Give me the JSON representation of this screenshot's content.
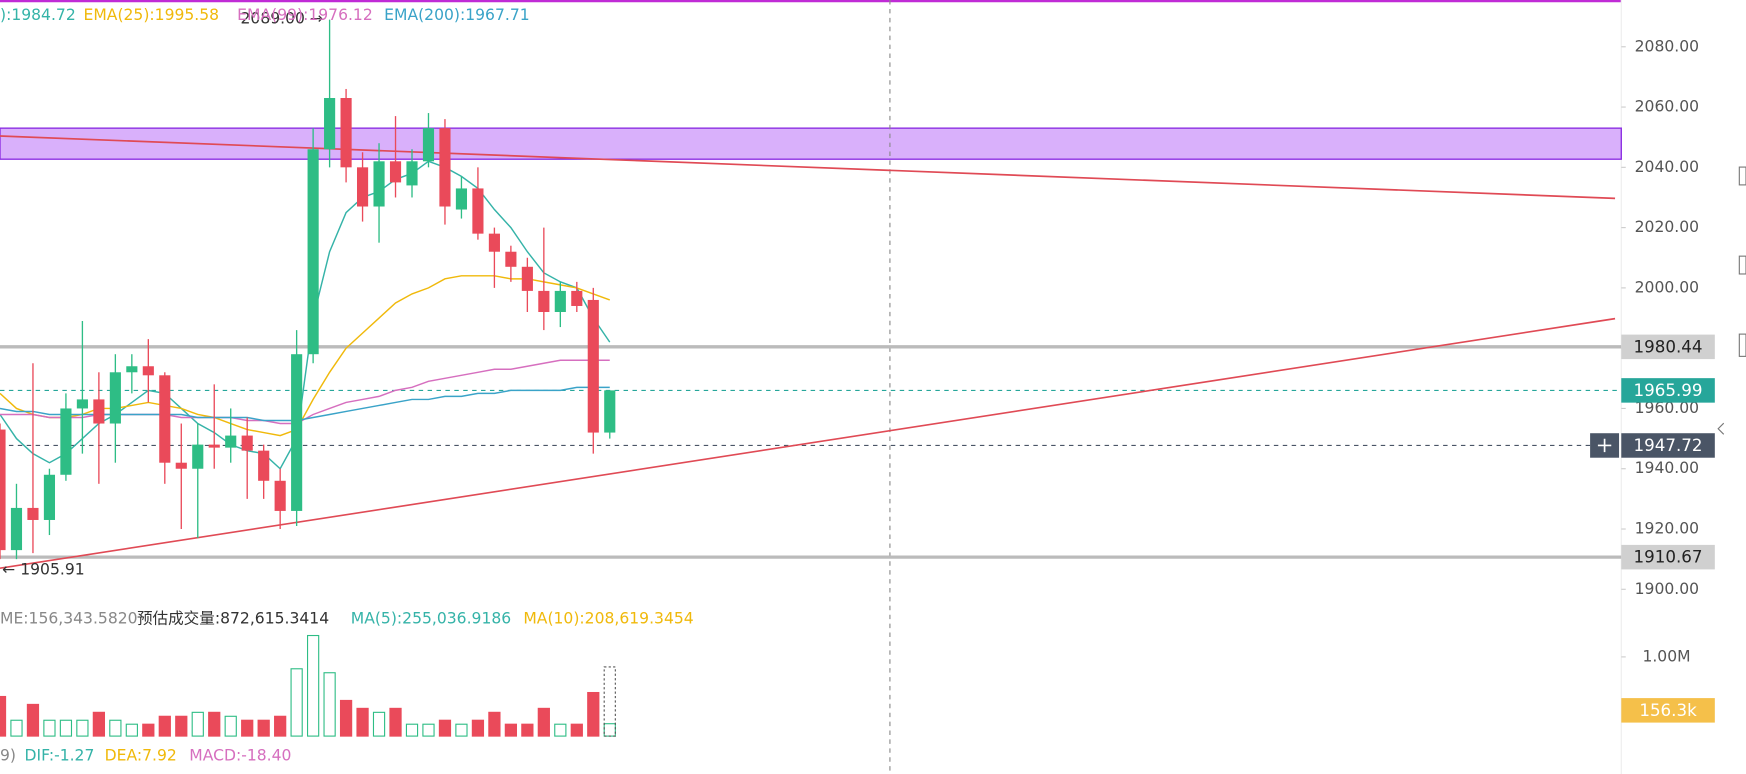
{
  "chart_data": {
    "type": "candlestick",
    "up_color": "#2ebd85",
    "down_color": "#ea4a5a",
    "open": [
      1953,
      1913,
      1927,
      1923,
      1938,
      1960,
      1963,
      1955,
      1972,
      1974,
      1971,
      1942,
      1940,
      1948,
      1947,
      1951,
      1946,
      1936,
      1926,
      1978,
      2046,
      2063,
      2040,
      2027,
      2042,
      2034,
      2042,
      2053,
      2026,
      2033,
      2018,
      2012,
      2007,
      1999,
      1992,
      1999,
      1996,
      1952
    ],
    "high": [
      1955,
      1935,
      1975,
      1940,
      1965,
      1989,
      1972,
      1978,
      1978,
      1983,
      1972,
      1955,
      1955,
      1968,
      1960,
      1957,
      1948,
      1940,
      1986,
      2053,
      2089,
      2066,
      2045,
      2048,
      2057,
      2046,
      2058,
      2056,
      2037,
      2040,
      2020,
      2014,
      2010,
      2020,
      2002,
      2002,
      2000,
      1966
    ],
    "low": [
      1910,
      1910,
      1912,
      1918,
      1936,
      1945,
      1935,
      1942,
      1965,
      1962,
      1935,
      1920,
      1917,
      1940,
      1942,
      1930,
      1930,
      1920,
      1921,
      1975,
      2040,
      2035,
      2022,
      2015,
      2030,
      2030,
      2040,
      2021,
      2023,
      2016,
      2000,
      2002,
      1992,
      1986,
      1987,
      1992,
      1945,
      1950
    ],
    "close": [
      1913,
      1927,
      1923,
      1938,
      1960,
      1963,
      1955,
      1972,
      1974,
      1971,
      1942,
      1940,
      1948,
      1947,
      1951,
      1946,
      1936,
      1926,
      1978,
      2046,
      2063,
      2040,
      2027,
      2042,
      2035,
      2042,
      2053,
      2027,
      2033,
      2018,
      2012,
      2007,
      1999,
      1992,
      1999,
      1994,
      1952,
      1966
    ],
    "ylim": [
      1896,
      2095.5
    ],
    "yticks": [
      {
        "value": 1900,
        "label": "1900.00"
      },
      {
        "value": 1920,
        "label": "1920.00"
      },
      {
        "value": 1940,
        "label": "1940.00"
      },
      {
        "value": 1960,
        "label": "1960.00"
      },
      {
        "value": 1980,
        "label": "1980.00"
      },
      {
        "value": 2000,
        "label": "2000.00"
      },
      {
        "value": 2020,
        "label": "2020.00"
      },
      {
        "value": 2040,
        "label": "2040.00"
      },
      {
        "value": 2060,
        "label": "2060.00"
      },
      {
        "value": 2080,
        "label": "2080.00"
      }
    ],
    "series": [
      {
        "name": "):1984.72",
        "color": "#35b3a8",
        "values": [
          1958,
          1950,
          1945,
          1942,
          1945,
          1950,
          1955,
          1958,
          1962,
          1966,
          1965,
          1960,
          1955,
          1952,
          1948,
          1946,
          1945,
          1940,
          1950,
          1990,
          2012,
          2025,
          2030,
          2032,
          2036,
          2038,
          2042,
          2040,
          2037,
          2033,
          2026,
          2020,
          2012,
          2005,
          2002,
          2000,
          1990,
          1982
        ]
      },
      {
        "name": "EMA(25):1995.58",
        "color": "#f0b90b",
        "values": [
          1965,
          1960,
          1958,
          1957,
          1957,
          1958,
          1960,
          1960,
          1961,
          1962,
          1961,
          1960,
          1958,
          1957,
          1955,
          1953,
          1952,
          1951,
          1953,
          1963,
          1972,
          1980,
          1985,
          1990,
          1995,
          1998,
          2000,
          2003,
          2004,
          2004,
          2004,
          2003,
          2003,
          2002,
          2001,
          2000,
          1998,
          1996
        ]
      },
      {
        "name": "EMA(99):1976.12",
        "color": "#d66fbf",
        "values": [
          1958,
          1958,
          1958,
          1957,
          1957,
          1957,
          1958,
          1958,
          1958,
          1958,
          1958,
          1957,
          1957,
          1957,
          1957,
          1956,
          1956,
          1955,
          1955,
          1958,
          1960,
          1962,
          1963,
          1964,
          1966,
          1967,
          1969,
          1970,
          1971,
          1972,
          1973,
          1973,
          1974,
          1975,
          1976,
          1976,
          1976,
          1976
        ]
      },
      {
        "name": "EMA(200):1967.71",
        "color": "#3aa3c8",
        "values": [
          1960,
          1959,
          1959,
          1958,
          1958,
          1958,
          1958,
          1958,
          1958,
          1958,
          1958,
          1958,
          1957,
          1957,
          1957,
          1957,
          1956,
          1956,
          1956,
          1957,
          1958,
          1959,
          1960,
          1961,
          1962,
          1963,
          1963,
          1964,
          1964,
          1965,
          1965,
          1966,
          1966,
          1966,
          1966,
          1967,
          1967,
          1967
        ]
      }
    ],
    "high_label": "2089.00 →",
    "low_label": "← 1905.91",
    "price_lines": [
      {
        "value": 1980.44,
        "color": "#bbbbbb",
        "style": "solid"
      },
      {
        "value": 1965.99,
        "color": "#26a69a",
        "style": "dashed"
      },
      {
        "value": 1947.72,
        "color": "#4a5566",
        "style": "crosshair"
      },
      {
        "value": 1910.67,
        "color": "#bbbbbb",
        "style": "solid"
      }
    ],
    "zone": {
      "range": [
        2042.7,
        2053
      ],
      "color": "#d9b0fb"
    },
    "trendlines": [
      {
        "x": [
          0,
          98
        ],
        "y": [
          2050.4,
          2029.7
        ],
        "color": "#e04a55"
      },
      {
        "x": [
          0,
          98
        ],
        "y": [
          1907,
          1989.8
        ],
        "color": "#e04a55"
      }
    ],
    "crosshair_x": 54,
    "volume": {
      "texts": [
        {
          "text": "ME:156,343.5820",
          "color": "#888888"
        },
        {
          "text": "预估成交量:872,615.3414",
          "color": "#333333"
        },
        {
          "text": "MA(5):255,036.9186",
          "color": "#35b3a8"
        },
        {
          "text": "MA(10):208,619.3454",
          "color": "#f0b90b"
        }
      ],
      "values": [
        0.5,
        0.2,
        0.4,
        0.2,
        0.2,
        0.2,
        0.3,
        0.2,
        0.15,
        0.15,
        0.25,
        0.25,
        0.3,
        0.3,
        0.25,
        0.2,
        0.2,
        0.25,
        0.85,
        1.27,
        0.8,
        0.45,
        0.35,
        0.3,
        0.35,
        0.15,
        0.15,
        0.2,
        0.15,
        0.2,
        0.3,
        0.15,
        0.15,
        0.35,
        0.15,
        0.15,
        0.55,
        0.1563
      ],
      "value_labels_last": "156.3k",
      "estimate": 0.8726,
      "ylim": [
        0,
        1.35
      ],
      "yticks": [
        {
          "value": 1,
          "label": "1.00M"
        }
      ]
    },
    "macd": {
      "texts": [
        {
          "text": "9)",
          "color": "#888888"
        },
        {
          "text": "DIF:-1.27",
          "color": "#35b3a8"
        },
        {
          "text": "DEA:7.92",
          "color": "#f0b90b"
        },
        {
          "text": "MACD:-18.40",
          "color": "#d66fbf"
        }
      ]
    }
  }
}
